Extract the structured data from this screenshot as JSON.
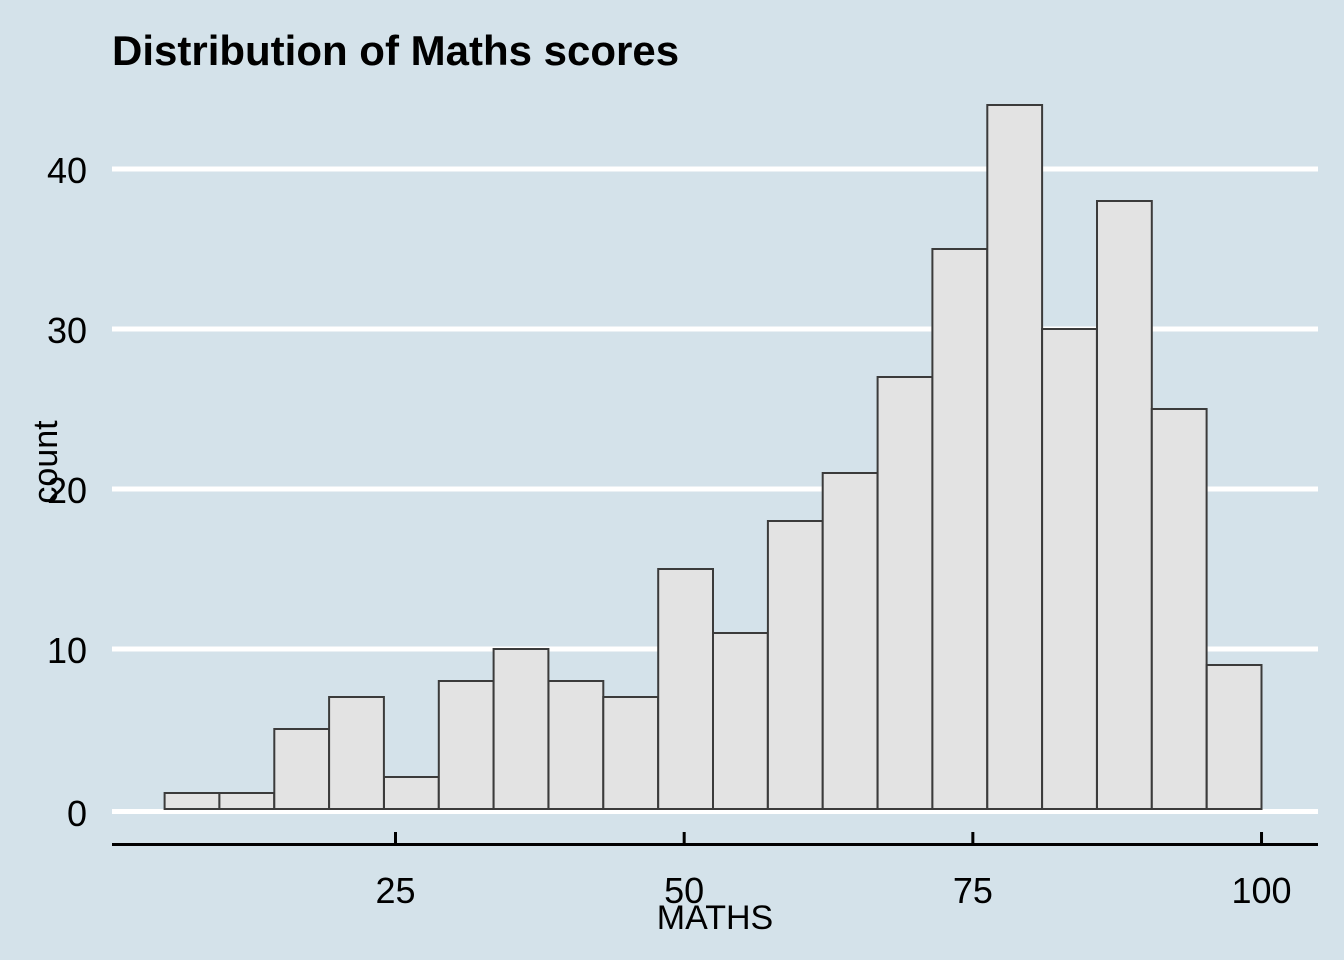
{
  "page": {
    "background": "#d4e2ea"
  },
  "chart_data": {
    "type": "bar",
    "variant": "histogram",
    "title": "Distribution of Maths scores",
    "xlabel": "MATHS",
    "ylabel": "count",
    "x_ticks": [
      25,
      50,
      75,
      100
    ],
    "y_ticks": [
      0,
      10,
      20,
      30,
      40
    ],
    "bin_edges": [
      5,
      9.75,
      14.5,
      19.25,
      24,
      28.75,
      33.5,
      38.25,
      43,
      47.75,
      52.5,
      57.25,
      62,
      66.75,
      71.5,
      76.25,
      81,
      85.75,
      90.5,
      95.25,
      100
    ],
    "counts": [
      1,
      1,
      5,
      7,
      2,
      8,
      10,
      8,
      7,
      15,
      11,
      18,
      21,
      27,
      35,
      44,
      30,
      38,
      25,
      9
    ],
    "xlim": [
      0,
      105
    ],
    "ylim": [
      0,
      44
    ],
    "grid": "major-y",
    "legend_position": "none",
    "colors": {
      "background": "#d4e2ea",
      "bar_fill": "#e3e3e3",
      "bar_stroke": "#3b3b3b",
      "gridline": "#ffffff",
      "axis_line": "#000000",
      "text": "#000000"
    }
  }
}
